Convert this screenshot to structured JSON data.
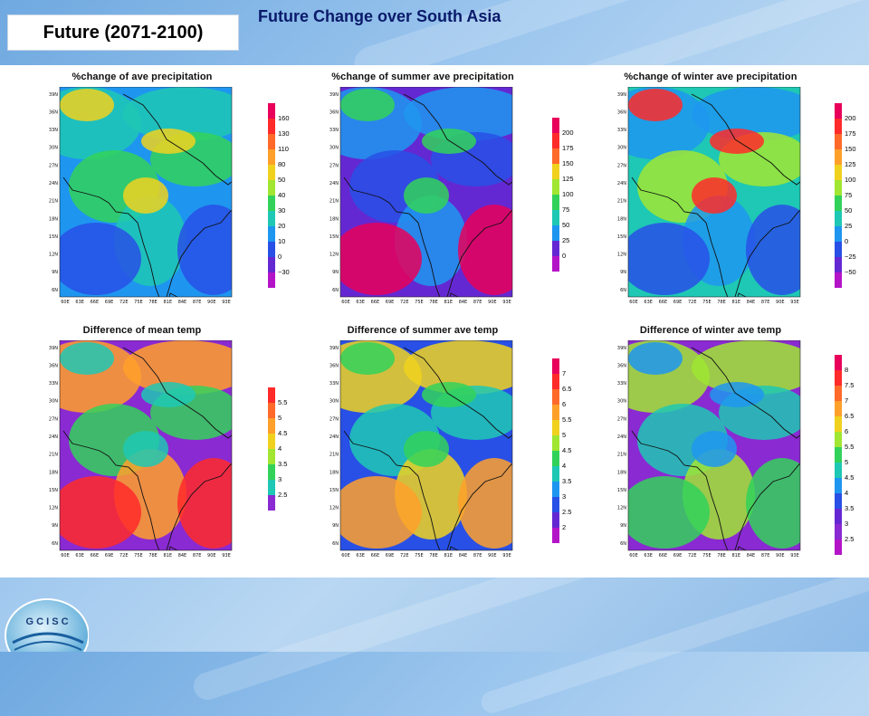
{
  "header": {
    "badge": "Future (2071-2100)",
    "title": "Future Change over South Asia"
  },
  "axes": {
    "lat_ticks": [
      "39N",
      "36N",
      "33N",
      "30N",
      "27N",
      "24N",
      "21N",
      "18N",
      "15N",
      "12N",
      "9N",
      "6N"
    ],
    "lon_ticks": [
      "60E",
      "63E",
      "66E",
      "69E",
      "72E",
      "75E",
      "78E",
      "81E",
      "84E",
      "87E",
      "90E",
      "93E"
    ]
  },
  "maps": [
    {
      "title": "%change of ave precipitation",
      "colorbar": {
        "labels": [
          "160",
          "130",
          "110",
          "80",
          "50",
          "40",
          "30",
          "20",
          "10",
          "0",
          "−30"
        ],
        "colors": [
          "#e8005a",
          "#ff2a2a",
          "#ff6a2a",
          "#ffa02a",
          "#f0d21e",
          "#a0e632",
          "#32d25a",
          "#1ec8b4",
          "#1e96f0",
          "#2850e6",
          "#6428d2",
          "#b414c8"
        ]
      },
      "palette": {
        "bg": "#1e96f0",
        "a": "#1ec8b4",
        "b": "#32d25a",
        "c": "#2850e6",
        "d": "#f0d21e"
      }
    },
    {
      "title": "%change of summer ave precipitation",
      "colorbar": {
        "labels": [
          "200",
          "175",
          "150",
          "125",
          "100",
          "75",
          "50",
          "25",
          "0"
        ],
        "colors": [
          "#e8005a",
          "#ff2a2a",
          "#ff6a2a",
          "#f0d21e",
          "#a0e632",
          "#32d25a",
          "#1ec8b4",
          "#1e96f0",
          "#6428d2",
          "#b414c8"
        ]
      },
      "palette": {
        "bg": "#6428d2",
        "a": "#1e96f0",
        "b": "#2850e6",
        "c": "#e8005a",
        "d": "#32d25a"
      }
    },
    {
      "title": "%change of winter ave precipitation",
      "colorbar": {
        "labels": [
          "200",
          "175",
          "150",
          "125",
          "100",
          "75",
          "50",
          "25",
          "0",
          "−25",
          "−50"
        ],
        "colors": [
          "#e8005a",
          "#ff2a2a",
          "#ff6a2a",
          "#ffa02a",
          "#f0d21e",
          "#a0e632",
          "#32d25a",
          "#1ec8b4",
          "#1e96f0",
          "#2850e6",
          "#6428d2",
          "#b414c8"
        ]
      },
      "palette": {
        "bg": "#1ec8b4",
        "a": "#1e96f0",
        "b": "#a0e632",
        "c": "#2850e6",
        "d": "#ff2a2a"
      }
    },
    {
      "title": "Difference of mean temp",
      "colorbar": {
        "labels": [
          "5.5",
          "5",
          "4.5",
          "4",
          "3.5",
          "3",
          "2.5"
        ],
        "colors": [
          "#ff2a2a",
          "#ff6a2a",
          "#ffa02a",
          "#f0d21e",
          "#a0e632",
          "#32d25a",
          "#1ec8b4",
          "#8a2ad2"
        ]
      },
      "palette": {
        "bg": "#8a2ad2",
        "a": "#ffa02a",
        "b": "#32d25a",
        "c": "#ff2a2a",
        "d": "#1ec8b4"
      }
    },
    {
      "title": "Difference of summer ave temp",
      "colorbar": {
        "labels": [
          "7",
          "6.5",
          "6",
          "5.5",
          "5",
          "4.5",
          "4",
          "3.5",
          "3",
          "2.5",
          "2"
        ],
        "colors": [
          "#e8005a",
          "#ff2a2a",
          "#ff6a2a",
          "#ffa02a",
          "#f0d21e",
          "#a0e632",
          "#32d25a",
          "#1ec8b4",
          "#1e96f0",
          "#2850e6",
          "#6428d2",
          "#b414c8"
        ]
      },
      "palette": {
        "bg": "#2850e6",
        "a": "#f0d21e",
        "b": "#1ec8b4",
        "c": "#ffa02a",
        "d": "#32d25a"
      }
    },
    {
      "title": "Difference of winter ave temp",
      "colorbar": {
        "labels": [
          "8",
          "7.5",
          "7",
          "6.5",
          "6",
          "5.5",
          "5",
          "4.5",
          "4",
          "3.5",
          "3",
          "2.5"
        ],
        "colors": [
          "#e8005a",
          "#ff2a2a",
          "#ff6a2a",
          "#ffa02a",
          "#f0d21e",
          "#a0e632",
          "#32d25a",
          "#1ec8b4",
          "#1e96f0",
          "#2850e6",
          "#6428d2",
          "#8a2ad2",
          "#b414c8"
        ]
      },
      "palette": {
        "bg": "#8a2ad2",
        "a": "#a0e632",
        "b": "#1ec8b4",
        "c": "#32d25a",
        "d": "#1e96f0"
      }
    }
  ],
  "logo": {
    "letters": "G C I S C"
  }
}
